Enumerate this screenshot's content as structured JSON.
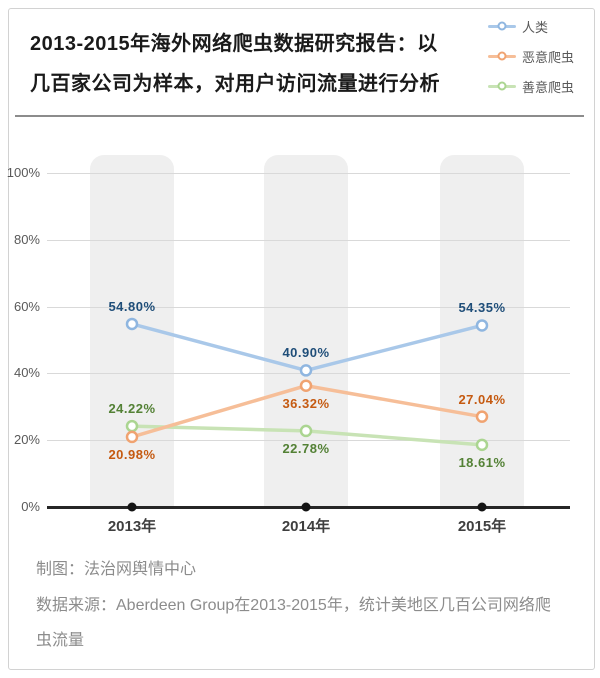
{
  "header": {
    "title": "2013-2015年海外网络爬虫数据研究报告：以几百家公司为样本，对用户访问流量进行分析",
    "title_lines": [
      "2013-2015年海外网络爬虫数据研究报告：以",
      "几百家公司为样本，对用户访问流量进行分析"
    ]
  },
  "colors": {
    "axis": "#262626",
    "axis_dot": "#141414",
    "grid": "#d9d9d9",
    "band": "#efefef",
    "tick_text": "#595959",
    "xtick_text": "#3f3f3f",
    "footer_text": "#8c8c8c"
  },
  "chart_data": {
    "type": "line",
    "title": "2013-2015年海外网络爬虫数据研究报告：以几百家公司为样本，对用户访问流量进行分析",
    "categories": [
      "2013年",
      "2014年",
      "2015年"
    ],
    "series": [
      {
        "name": "人类",
        "values": [
          54.8,
          40.9,
          54.35
        ],
        "labels": [
          "54.80%",
          "40.90%",
          "54.35%"
        ],
        "label_pos": [
          "above",
          "above",
          "above"
        ],
        "line_color": "#a9c8e9",
        "marker_color": "#8fb6e0",
        "label_color": "#1f4e79"
      },
      {
        "name": "恶意爬虫",
        "values": [
          20.98,
          36.32,
          27.04
        ],
        "labels": [
          "20.98%",
          "36.32%",
          "27.04%"
        ],
        "label_pos": [
          "below",
          "below",
          "above"
        ],
        "line_color": "#f6be98",
        "marker_color": "#f0a371",
        "label_color": "#c55a11"
      },
      {
        "name": "善意爬虫",
        "values": [
          24.22,
          22.78,
          18.61
        ],
        "labels": [
          "24.22%",
          "22.78%",
          "18.61%"
        ],
        "label_pos": [
          "above",
          "below",
          "below"
        ],
        "line_color": "#c8e3b5",
        "marker_color": "#abd591",
        "label_color": "#538135"
      }
    ],
    "y_ticks": [
      {
        "pct": 0,
        "label": "0%"
      },
      {
        "pct": 20,
        "label": "20%"
      },
      {
        "pct": 40,
        "label": "40%"
      },
      {
        "pct": 60,
        "label": "60%"
      },
      {
        "pct": 80,
        "label": "80%"
      },
      {
        "pct": 100,
        "label": "100%"
      }
    ],
    "ylim": [
      0,
      100
    ],
    "grid": true,
    "legend_position": "top-right"
  },
  "footer": {
    "line1": "制图：法治网舆情中心",
    "line2": "数据来源：Aberdeen Group在2013-2015年，统计美地区几百公司网络爬虫流量"
  }
}
